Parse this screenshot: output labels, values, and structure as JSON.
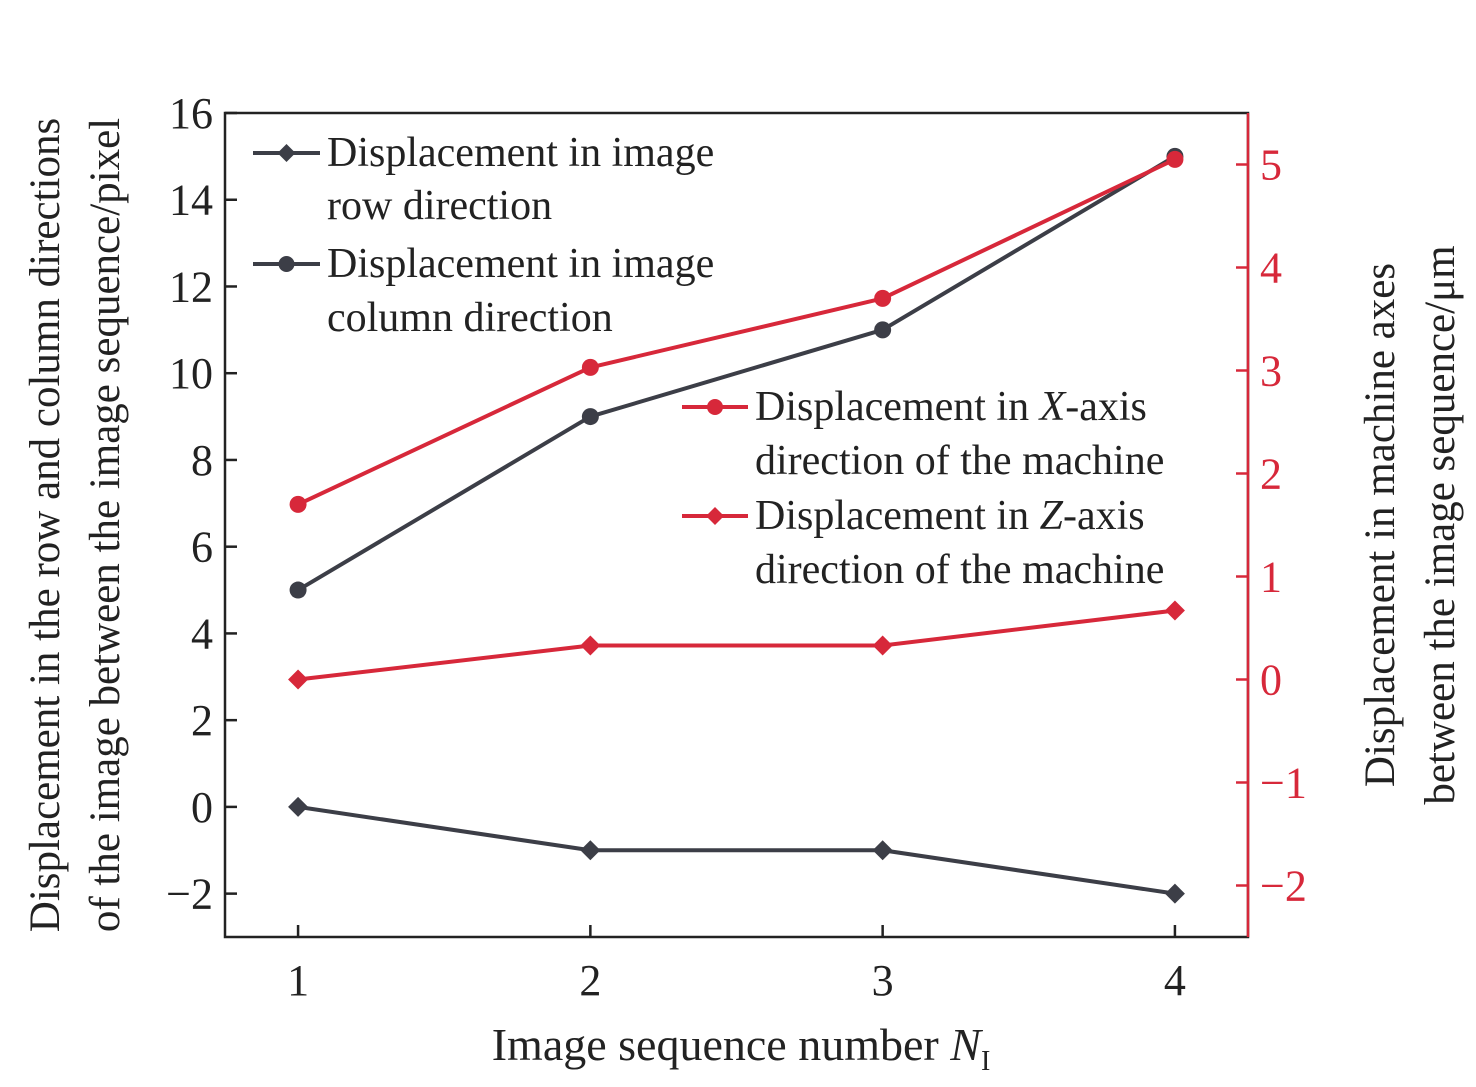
{
  "colors": {
    "dark_series": "#3c3e47",
    "red_series": "#d7283a",
    "axis": "#222222",
    "right_axis": "#d7283a",
    "background": "#ffffff"
  },
  "chart_data": {
    "type": "line",
    "title": "",
    "xlabel": "Image sequence number ",
    "xlabel_symbol": "N",
    "xlabel_subscript": "I",
    "ylabel_left_line1": "Displacement in the row and column directions",
    "ylabel_left_line2": "of the image between the image sequence/pixel",
    "ylabel_right_line1": "Displacement in machine axes",
    "ylabel_right_line2": "between the image sequence/μm",
    "x": [
      1,
      2,
      3,
      4
    ],
    "x_ticks": [
      "1",
      "2",
      "3",
      "4"
    ],
    "x_range": [
      0.75,
      4.25
    ],
    "y_left_range": [
      -3,
      16
    ],
    "y_left_ticks": [
      -2,
      0,
      2,
      4,
      6,
      8,
      10,
      12,
      14,
      16
    ],
    "y_left_tick_labels": [
      "−2",
      "0",
      "2",
      "4",
      "6",
      "8",
      "10",
      "12",
      "14",
      "16"
    ],
    "y_right_range": [
      -2.5,
      5.5
    ],
    "y_right_ticks": [
      -2,
      -1,
      0,
      1,
      2,
      3,
      4,
      5
    ],
    "y_right_tick_labels": [
      "−2",
      "−1",
      "0",
      "1",
      "2",
      "3",
      "4",
      "5"
    ],
    "grid": false,
    "legend_left_placement": "top-left",
    "legend_right_placement": "center-right",
    "series": [
      {
        "name_line1": "Displacement in image",
        "name_line2": "row direction",
        "axis": "left",
        "marker": "diamond",
        "color": "#3c3e47",
        "values": [
          0,
          -1,
          -1,
          -2
        ]
      },
      {
        "name_line1": "Displacement in image",
        "name_line2": "column direction",
        "axis": "left",
        "marker": "circle",
        "color": "#3c3e47",
        "values": [
          5,
          9,
          11,
          15
        ]
      },
      {
        "name_line1_pre": "Displacement in ",
        "name_line1_italic": "X",
        "name_line1_post": "-axis",
        "name_line2": "direction of the machine",
        "axis": "right",
        "marker": "circle",
        "color": "#d7283a",
        "values": [
          1.7,
          3.03,
          3.7,
          5.05
        ]
      },
      {
        "name_line1_pre": "Displacement in ",
        "name_line1_italic": "Z",
        "name_line1_post": "-axis",
        "name_line2": "direction of the machine",
        "axis": "right",
        "marker": "diamond",
        "color": "#d7283a",
        "values": [
          0,
          0.33,
          0.33,
          0.67
        ]
      }
    ]
  }
}
